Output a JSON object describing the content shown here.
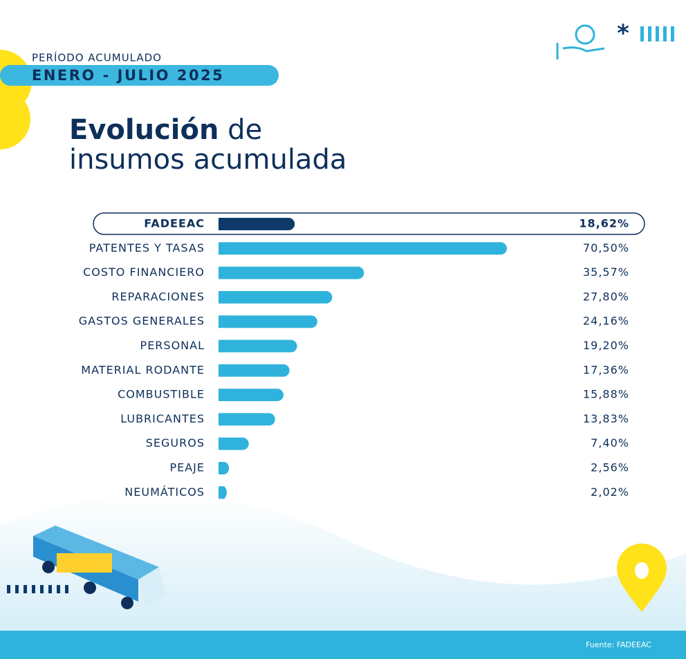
{
  "header": {
    "period_label": "PERÍODO ACUMULADO",
    "period": "ENERO - JULIO 2025"
  },
  "chart_data": {
    "type": "bar",
    "orientation": "horizontal",
    "title_parts": [
      "Evolución",
      "de",
      "insumos acumulada"
    ],
    "categories": [
      "FADEEAC",
      "PATENTES Y TASAS",
      "COSTO FINANCIERO",
      "REPARACIONES",
      "GASTOS GENERALES",
      "PERSONAL",
      "MATERIAL RODANTE",
      "COMBUSTIBLE",
      "LUBRICANTES",
      "SEGUROS",
      "PEAJE",
      "NEUMÁTICOS"
    ],
    "values": [
      18.62,
      70.5,
      35.57,
      27.8,
      24.16,
      19.2,
      17.36,
      15.88,
      13.83,
      7.4,
      2.56,
      2.02
    ],
    "value_labels": [
      "18,62%",
      "70,50%",
      "35,57%",
      "27,80%",
      "24,16%",
      "19,20%",
      "17,36%",
      "15,88%",
      "13,83%",
      "7,40%",
      "2,56%",
      "2,02%"
    ],
    "color": "#2fb3dc",
    "highlight_index": 0,
    "highlight_color": "#0d3a6b"
  },
  "footer": {
    "source": "Fuente: FADEEAC"
  }
}
